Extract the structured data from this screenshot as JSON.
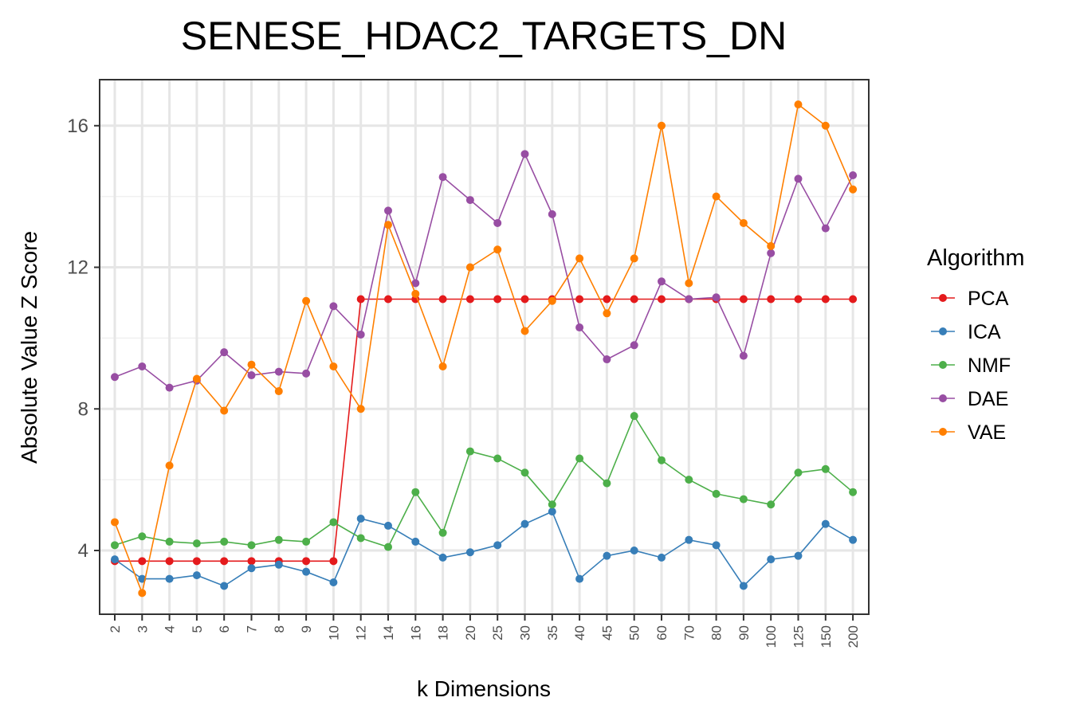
{
  "chart_data": {
    "type": "line",
    "title": "SENESE_HDAC2_TARGETS_DN",
    "xlabel": "k Dimensions",
    "ylabel": "Absolute Value Z Score",
    "x": [
      "2",
      "3",
      "4",
      "5",
      "6",
      "7",
      "8",
      "9",
      "10",
      "12",
      "14",
      "16",
      "18",
      "20",
      "25",
      "30",
      "35",
      "40",
      "45",
      "50",
      "60",
      "70",
      "80",
      "90",
      "100",
      "125",
      "150",
      "200"
    ],
    "ylim": [
      2.2,
      17.3
    ],
    "yticks": [
      4,
      8,
      12,
      16
    ],
    "grid": true,
    "legend": {
      "title": "Algorithm",
      "placement": "right"
    },
    "series": [
      {
        "name": "PCA",
        "color": "#e41a1c",
        "values": [
          3.7,
          3.7,
          3.7,
          3.7,
          3.7,
          3.7,
          3.7,
          3.7,
          3.7,
          11.1,
          11.1,
          11.1,
          11.1,
          11.1,
          11.1,
          11.1,
          11.1,
          11.1,
          11.1,
          11.1,
          11.1,
          11.1,
          11.1,
          11.1,
          11.1,
          11.1,
          11.1,
          11.1
        ]
      },
      {
        "name": "ICA",
        "color": "#377eb8",
        "values": [
          3.75,
          3.2,
          3.2,
          3.3,
          3.0,
          3.5,
          3.6,
          3.4,
          3.1,
          4.9,
          4.7,
          4.25,
          3.8,
          3.95,
          4.15,
          4.75,
          5.1,
          3.2,
          3.85,
          4.0,
          3.8,
          4.3,
          4.15,
          3.0,
          3.75,
          3.85,
          4.75,
          4.3
        ]
      },
      {
        "name": "NMF",
        "color": "#4daf4a",
        "values": [
          4.15,
          4.4,
          4.25,
          4.2,
          4.25,
          4.15,
          4.3,
          4.25,
          4.8,
          4.35,
          4.1,
          5.65,
          4.5,
          6.8,
          6.6,
          6.2,
          5.3,
          6.6,
          5.9,
          7.8,
          6.55,
          6.0,
          5.6,
          5.45,
          5.3,
          6.2,
          6.3,
          5.65
        ]
      },
      {
        "name": "DAE",
        "color": "#984ea3",
        "values": [
          8.9,
          9.2,
          8.6,
          8.8,
          9.6,
          8.95,
          9.05,
          9.0,
          10.9,
          10.1,
          13.6,
          11.55,
          14.55,
          13.9,
          13.25,
          15.2,
          13.5,
          10.3,
          9.4,
          9.8,
          11.6,
          11.1,
          11.15,
          9.5,
          12.4,
          14.5,
          13.1,
          14.6
        ]
      },
      {
        "name": "VAE",
        "color": "#ff7f00",
        "values": [
          4.8,
          2.8,
          6.4,
          8.85,
          7.95,
          9.25,
          8.5,
          11.05,
          9.2,
          8.0,
          13.2,
          11.25,
          9.2,
          12.0,
          12.5,
          10.2,
          11.05,
          12.25,
          10.7,
          12.25,
          16.0,
          11.55,
          14.0,
          13.25,
          12.6,
          16.6,
          16.0,
          14.2
        ]
      }
    ]
  }
}
